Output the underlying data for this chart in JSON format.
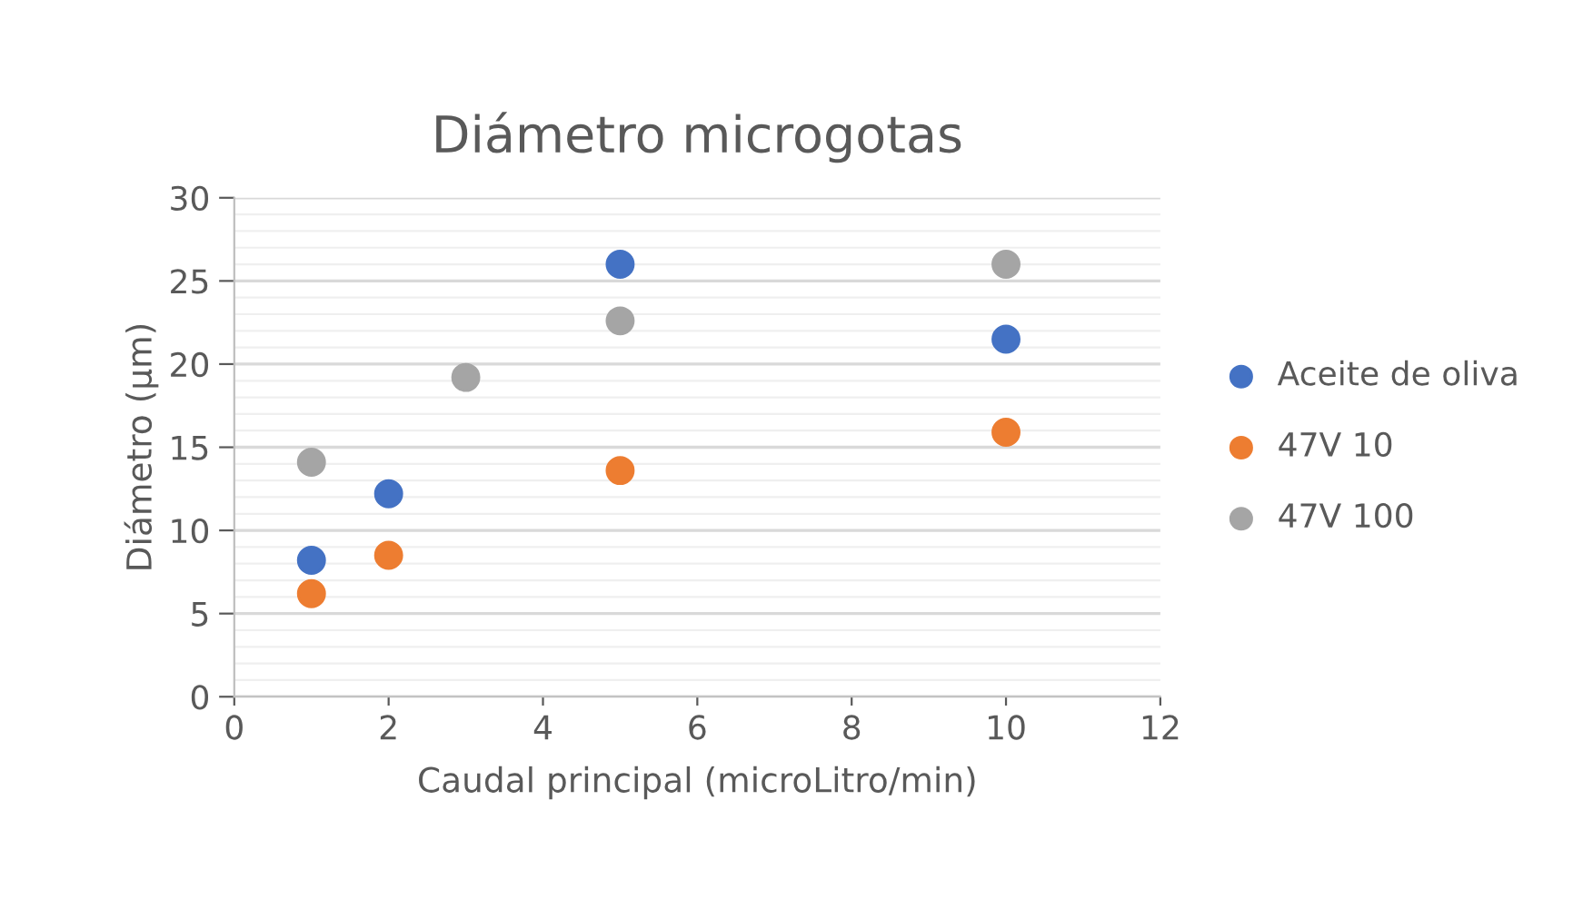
{
  "chart_data": {
    "type": "scatter",
    "title": "Diámetro microgotas",
    "xlabel": "Caudal principal (microLitro/min)",
    "ylabel": "Diámetro (µm)",
    "xlim": [
      0,
      12
    ],
    "xticks": [
      0,
      2,
      4,
      6,
      8,
      10,
      12
    ],
    "ylim": [
      0,
      30
    ],
    "yticks": [
      0,
      5,
      10,
      15,
      20,
      25,
      30
    ],
    "grid": "y",
    "legend": "right",
    "marker": "circle",
    "series": [
      {
        "name": "Aceite de oliva",
        "color": "#4472c4",
        "x": [
          1,
          2,
          5,
          10
        ],
        "values": [
          8.2,
          12.2,
          26.0,
          21.5
        ]
      },
      {
        "name": "47V 10",
        "color": "#ed7d31",
        "x": [
          1,
          2,
          5,
          10
        ],
        "values": [
          6.2,
          8.5,
          13.6,
          15.9
        ]
      },
      {
        "name": "47V 100",
        "color": "#a5a5a5",
        "x": [
          1,
          3,
          5,
          10
        ],
        "values": [
          14.1,
          19.2,
          22.6,
          26.0
        ]
      }
    ]
  }
}
